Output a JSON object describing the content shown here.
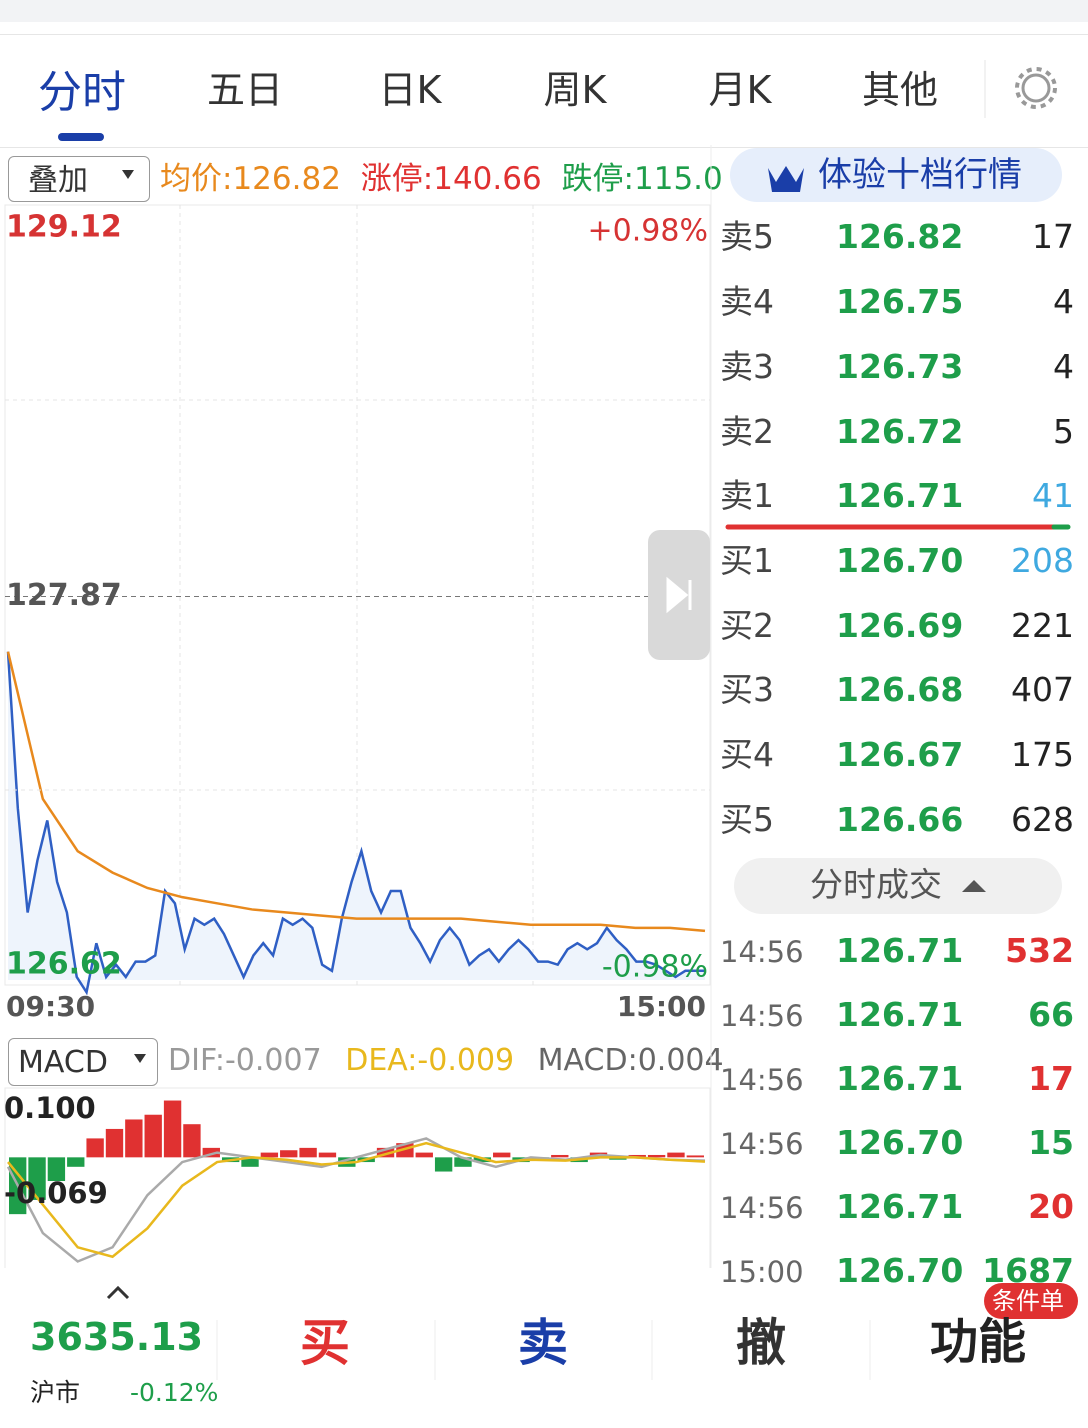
{
  "tabs": [
    "分时",
    "五日",
    "日K",
    "周K",
    "月K",
    "其他"
  ],
  "overlay": {
    "dropdown": "叠加",
    "avg": "均价:126.82",
    "limit_up": "涨停:140.66",
    "limit_down": "跌停:115.0"
  },
  "price_chart": {
    "ylim": [
      126.62,
      129.12
    ],
    "yticks": [
      129.12,
      127.87,
      126.62
    ],
    "up_pct": "+0.98%",
    "down_pct": "-0.98%",
    "start": "09:30",
    "end": "15:00",
    "price": [
      127.69,
      127.18,
      126.84,
      127.01,
      127.14,
      126.94,
      126.84,
      126.63,
      126.58,
      126.74,
      126.63,
      126.67,
      126.63,
      126.68,
      126.68,
      126.7,
      126.91,
      126.87,
      126.72,
      126.82,
      126.8,
      126.82,
      126.77,
      126.7,
      126.63,
      126.7,
      126.74,
      126.7,
      126.82,
      126.8,
      126.82,
      126.79,
      126.67,
      126.65,
      126.82,
      126.94,
      127.04,
      126.91,
      126.84,
      126.91,
      126.91,
      126.79,
      126.74,
      126.68,
      126.75,
      126.79,
      126.75,
      126.67,
      126.7,
      126.72,
      126.68,
      126.72,
      126.75,
      126.72,
      126.68,
      126.68,
      126.67,
      126.72,
      126.74,
      126.72,
      126.74,
      126.79,
      126.75,
      126.72,
      126.68,
      126.68,
      126.67,
      126.65,
      126.63,
      126.65,
      126.65,
      126.65
    ],
    "avg": [
      127.69,
      127.21,
      127.04,
      126.97,
      126.92,
      126.89,
      126.87,
      126.85,
      126.84,
      126.83,
      126.82,
      126.82,
      126.82,
      126.82,
      126.81,
      126.8,
      126.8,
      126.8,
      126.79,
      126.79,
      126.78
    ]
  },
  "macd": {
    "dropdown": "MACD",
    "dif": "DIF:-0.007",
    "dea": "DEA:-0.009",
    "macd": "MACD:0.004",
    "yticks": [
      {
        "value": 0.1,
        "label": "0.100"
      },
      -0.069
    ],
    "hist": [
      -0.12,
      -0.09,
      -0.05,
      -0.02,
      0.04,
      0.06,
      0.08,
      0.09,
      0.12,
      0.07,
      0.02,
      -0.01,
      -0.02,
      0.01,
      0.015,
      0.02,
      0.01,
      -0.02,
      -0.01,
      0.02,
      0.03,
      0.01,
      -0.03,
      -0.02,
      -0.01,
      0.01,
      -0.01,
      -0.005,
      0.005,
      -0.01,
      0.01,
      -0.005,
      0.005,
      0.005,
      0.01,
      0.004
    ],
    "dif_line": [
      -0.02,
      -0.16,
      -0.22,
      -0.19,
      -0.08,
      -0.01,
      0.01,
      0.0,
      -0.01,
      -0.02,
      0.0,
      0.02,
      0.04,
      0.0,
      -0.02,
      0.0,
      -0.005,
      0.005,
      0.0,
      -0.005,
      -0.007
    ],
    "dea_line": [
      -0.01,
      -0.1,
      -0.19,
      -0.21,
      -0.15,
      -0.06,
      -0.01,
      0.0,
      -0.005,
      -0.015,
      -0.01,
      0.01,
      0.03,
      0.01,
      -0.01,
      -0.005,
      -0.007,
      0.0,
      0.0,
      -0.005,
      -0.009
    ]
  },
  "depth": {
    "button": "体验十档行情",
    "asks": [
      {
        "label": "卖5",
        "price": "126.82",
        "volume": 17
      },
      {
        "label": "卖4",
        "price": "126.75",
        "volume": 4
      },
      {
        "label": "卖3",
        "price": "126.73",
        "volume": 4
      },
      {
        "label": "卖2",
        "price": "126.72",
        "volume": 5
      },
      {
        "label": "卖1",
        "price": "126.71",
        "volume": 41,
        "color": "#3fa9e0"
      }
    ],
    "bids": [
      {
        "label": "买1",
        "price": "126.70",
        "volume": 208,
        "color": "#3fa9e0"
      },
      {
        "label": "买2",
        "price": "126.69",
        "volume": 221
      },
      {
        "label": "买3",
        "price": "126.68",
        "volume": 407
      },
      {
        "label": "买4",
        "price": "126.67",
        "volume": 175
      },
      {
        "label": "买5",
        "price": "126.66",
        "volume": 628
      }
    ]
  },
  "trades": {
    "button": "分时成交",
    "rows": [
      {
        "time": "14:56",
        "price": "126.71",
        "volume": 532,
        "color": "#e03131"
      },
      {
        "time": "14:56",
        "price": "126.71",
        "volume": 66,
        "color": "#1e9e4a"
      },
      {
        "time": "14:56",
        "price": "126.71",
        "volume": 17,
        "color": "#e03131"
      },
      {
        "time": "14:56",
        "price": "126.70",
        "volume": 15,
        "color": "#1e9e4a"
      },
      {
        "time": "14:56",
        "price": "126.71",
        "volume": 20,
        "color": "#e03131"
      },
      {
        "time": "15:00",
        "price": "126.70",
        "volume": 1687,
        "color": "#1e9e4a"
      }
    ]
  },
  "bottom": {
    "index_value": "3635.13",
    "index_name": "沪市",
    "index_change": "-0.12%",
    "buy": "买",
    "sell": "卖",
    "cancel": "撤",
    "function": "功能",
    "badge": "条件单"
  }
}
